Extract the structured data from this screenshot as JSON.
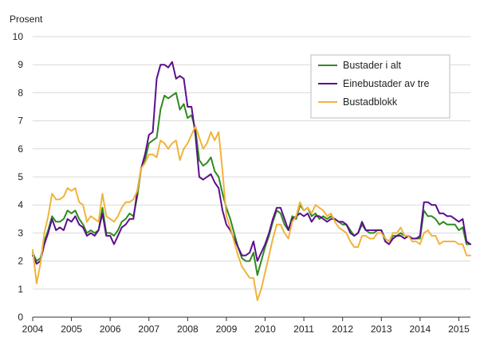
{
  "chart_data": {
    "type": "line",
    "ylabel": "Prosent",
    "ylim": [
      0,
      10
    ],
    "yticks": [
      0,
      1,
      2,
      3,
      4,
      5,
      6,
      7,
      8,
      9,
      10
    ],
    "xlim": [
      2004.0,
      2015.3
    ],
    "xticks": [
      2004,
      2005,
      2006,
      2007,
      2008,
      2009,
      2010,
      2011,
      2012,
      2013,
      2014,
      2015
    ],
    "xtick_labels": [
      "2004",
      "2005",
      "2006",
      "2007",
      "2008",
      "2009",
      "2010",
      "2011",
      "2012",
      "2013",
      "2014",
      "2015"
    ],
    "grid": "horizontal",
    "legend": "top-right",
    "series": [
      {
        "name": "Bustader i alt",
        "color": "#2e8b1e",
        "x": [
          2004.0,
          2004.1,
          2004.2,
          2004.3,
          2004.4,
          2004.5,
          2004.6,
          2004.7,
          2004.8,
          2004.9,
          2005.0,
          2005.1,
          2005.2,
          2005.3,
          2005.4,
          2005.5,
          2005.6,
          2005.7,
          2005.8,
          2005.9,
          2006.0,
          2006.1,
          2006.2,
          2006.3,
          2006.4,
          2006.5,
          2006.6,
          2006.7,
          2006.8,
          2006.9,
          2007.0,
          2007.1,
          2007.2,
          2007.3,
          2007.4,
          2007.5,
          2007.6,
          2007.7,
          2007.8,
          2007.9,
          2008.0,
          2008.1,
          2008.2,
          2008.3,
          2008.4,
          2008.5,
          2008.6,
          2008.7,
          2008.8,
          2008.9,
          2009.0,
          2009.1,
          2009.2,
          2009.3,
          2009.4,
          2009.5,
          2009.6,
          2009.7,
          2009.8,
          2009.9,
          2010.0,
          2010.1,
          2010.2,
          2010.3,
          2010.4,
          2010.5,
          2010.6,
          2010.7,
          2010.8,
          2010.9,
          2011.0,
          2011.1,
          2011.2,
          2011.3,
          2011.4,
          2011.5,
          2011.6,
          2011.7,
          2011.8,
          2011.9,
          2012.0,
          2012.1,
          2012.2,
          2012.3,
          2012.4,
          2012.5,
          2012.6,
          2012.7,
          2012.8,
          2012.9,
          2013.0,
          2013.1,
          2013.2,
          2013.3,
          2013.4,
          2013.5,
          2013.6,
          2013.7,
          2013.8,
          2013.9,
          2014.0,
          2014.1,
          2014.2,
          2014.3,
          2014.4,
          2014.5,
          2014.6,
          2014.7,
          2014.8,
          2014.9,
          2015.0,
          2015.1,
          2015.2,
          2015.3
        ],
        "values": [
          2.3,
          2.0,
          2.1,
          2.7,
          3.1,
          3.6,
          3.4,
          3.4,
          3.5,
          3.8,
          3.7,
          3.8,
          3.5,
          3.3,
          3.0,
          3.1,
          3.0,
          3.1,
          3.9,
          3.0,
          3.0,
          2.9,
          3.1,
          3.4,
          3.5,
          3.7,
          3.6,
          4.3,
          5.3,
          5.6,
          6.2,
          6.3,
          6.4,
          7.4,
          7.9,
          7.8,
          7.9,
          8.0,
          7.4,
          7.6,
          7.1,
          7.2,
          6.7,
          5.6,
          5.4,
          5.5,
          5.7,
          5.2,
          5.0,
          4.4,
          3.9,
          3.5,
          3.0,
          2.5,
          2.1,
          2.0,
          2.0,
          2.3,
          1.5,
          2.0,
          2.5,
          2.9,
          3.4,
          3.8,
          3.7,
          3.3,
          3.1,
          3.6,
          3.5,
          4.0,
          3.8,
          3.9,
          3.6,
          3.7,
          3.5,
          3.6,
          3.5,
          3.6,
          3.5,
          3.4,
          3.3,
          3.3,
          3.1,
          2.9,
          3.0,
          3.3,
          3.1,
          3.0,
          3.0,
          3.1,
          3.1,
          2.8,
          2.7,
          2.9,
          2.9,
          3.0,
          2.9,
          2.9,
          2.8,
          2.8,
          2.8,
          3.8,
          3.6,
          3.6,
          3.5,
          3.3,
          3.4,
          3.3,
          3.3,
          3.3,
          3.1,
          3.2,
          2.6,
          2.6
        ]
      },
      {
        "name": "Einebustader av tre",
        "color": "#5b0f8c",
        "x": [
          2004.0,
          2004.1,
          2004.2,
          2004.3,
          2004.4,
          2004.5,
          2004.6,
          2004.7,
          2004.8,
          2004.9,
          2005.0,
          2005.1,
          2005.2,
          2005.3,
          2005.4,
          2005.5,
          2005.6,
          2005.7,
          2005.8,
          2005.9,
          2006.0,
          2006.1,
          2006.2,
          2006.3,
          2006.4,
          2006.5,
          2006.6,
          2006.7,
          2006.8,
          2006.9,
          2007.0,
          2007.1,
          2007.2,
          2007.3,
          2007.4,
          2007.5,
          2007.6,
          2007.7,
          2007.8,
          2007.9,
          2008.0,
          2008.1,
          2008.2,
          2008.3,
          2008.4,
          2008.5,
          2008.6,
          2008.7,
          2008.8,
          2008.9,
          2009.0,
          2009.1,
          2009.2,
          2009.3,
          2009.4,
          2009.5,
          2009.6,
          2009.7,
          2009.8,
          2009.9,
          2010.0,
          2010.1,
          2010.2,
          2010.3,
          2010.4,
          2010.5,
          2010.6,
          2010.7,
          2010.8,
          2010.9,
          2011.0,
          2011.1,
          2011.2,
          2011.3,
          2011.4,
          2011.5,
          2011.6,
          2011.7,
          2011.8,
          2011.9,
          2012.0,
          2012.1,
          2012.2,
          2012.3,
          2012.4,
          2012.5,
          2012.6,
          2012.7,
          2012.8,
          2012.9,
          2013.0,
          2013.1,
          2013.2,
          2013.3,
          2013.4,
          2013.5,
          2013.6,
          2013.7,
          2013.8,
          2013.9,
          2014.0,
          2014.1,
          2014.2,
          2014.3,
          2014.4,
          2014.5,
          2014.6,
          2014.7,
          2014.8,
          2014.9,
          2015.0,
          2015.1,
          2015.2,
          2015.3
        ],
        "values": [
          2.2,
          1.9,
          2.0,
          2.6,
          3.0,
          3.5,
          3.1,
          3.2,
          3.1,
          3.5,
          3.4,
          3.6,
          3.3,
          3.2,
          2.9,
          3.0,
          2.9,
          3.1,
          3.7,
          2.9,
          2.9,
          2.6,
          2.9,
          3.2,
          3.3,
          3.5,
          3.5,
          4.5,
          5.3,
          5.8,
          6.5,
          6.6,
          8.5,
          9.0,
          9.0,
          8.9,
          9.1,
          8.5,
          8.6,
          8.5,
          7.5,
          7.5,
          6.5,
          5.0,
          4.9,
          5.0,
          5.1,
          4.8,
          4.6,
          3.8,
          3.3,
          3.1,
          2.8,
          2.5,
          2.2,
          2.2,
          2.3,
          2.7,
          2.0,
          2.3,
          2.6,
          3.0,
          3.5,
          3.9,
          3.9,
          3.5,
          3.1,
          3.5,
          3.6,
          3.7,
          3.6,
          3.7,
          3.4,
          3.6,
          3.6,
          3.5,
          3.4,
          3.5,
          3.5,
          3.4,
          3.4,
          3.3,
          3.0,
          2.9,
          3.0,
          3.4,
          3.1,
          3.1,
          3.1,
          3.1,
          3.1,
          2.7,
          2.6,
          2.8,
          2.9,
          2.9,
          2.8,
          2.9,
          2.8,
          2.8,
          2.9,
          4.1,
          4.1,
          4.0,
          4.0,
          3.7,
          3.7,
          3.6,
          3.6,
          3.5,
          3.4,
          3.5,
          2.7,
          2.6
        ]
      },
      {
        "name": "Bustadblokk",
        "color": "#f0b43c",
        "x": [
          2004.0,
          2004.1,
          2004.2,
          2004.3,
          2004.4,
          2004.5,
          2004.6,
          2004.7,
          2004.8,
          2004.9,
          2005.0,
          2005.1,
          2005.2,
          2005.3,
          2005.4,
          2005.5,
          2005.6,
          2005.7,
          2005.8,
          2005.9,
          2006.0,
          2006.1,
          2006.2,
          2006.3,
          2006.4,
          2006.5,
          2006.6,
          2006.7,
          2006.8,
          2006.9,
          2007.0,
          2007.1,
          2007.2,
          2007.3,
          2007.4,
          2007.5,
          2007.6,
          2007.7,
          2007.8,
          2007.9,
          2008.0,
          2008.1,
          2008.2,
          2008.3,
          2008.4,
          2008.5,
          2008.6,
          2008.7,
          2008.8,
          2008.9,
          2009.0,
          2009.1,
          2009.2,
          2009.3,
          2009.4,
          2009.5,
          2009.6,
          2009.7,
          2009.8,
          2009.9,
          2010.0,
          2010.1,
          2010.2,
          2010.3,
          2010.4,
          2010.5,
          2010.6,
          2010.7,
          2010.8,
          2010.9,
          2011.0,
          2011.1,
          2011.2,
          2011.3,
          2011.4,
          2011.5,
          2011.6,
          2011.7,
          2011.8,
          2011.9,
          2012.0,
          2012.1,
          2012.2,
          2012.3,
          2012.4,
          2012.5,
          2012.6,
          2012.7,
          2012.8,
          2012.9,
          2013.0,
          2013.1,
          2013.2,
          2013.3,
          2013.4,
          2013.5,
          2013.6,
          2013.7,
          2013.8,
          2013.9,
          2014.0,
          2014.1,
          2014.2,
          2014.3,
          2014.4,
          2014.5,
          2014.6,
          2014.7,
          2014.8,
          2014.9,
          2015.0,
          2015.1,
          2015.2,
          2015.3
        ],
        "values": [
          2.4,
          1.2,
          1.9,
          3.0,
          3.6,
          4.4,
          4.2,
          4.2,
          4.3,
          4.6,
          4.5,
          4.6,
          4.1,
          4.0,
          3.4,
          3.6,
          3.5,
          3.4,
          4.4,
          3.6,
          3.5,
          3.4,
          3.6,
          3.9,
          4.1,
          4.1,
          4.2,
          4.5,
          5.3,
          5.5,
          5.8,
          5.8,
          5.7,
          6.3,
          6.2,
          6.0,
          6.2,
          6.3,
          5.6,
          6.0,
          6.2,
          6.5,
          6.8,
          6.4,
          6.0,
          6.2,
          6.6,
          6.3,
          6.6,
          5.2,
          3.6,
          3.2,
          2.7,
          2.2,
          1.8,
          1.6,
          1.4,
          1.4,
          0.6,
          1.0,
          1.6,
          2.2,
          2.8,
          3.3,
          3.3,
          3.0,
          2.8,
          3.4,
          3.6,
          4.1,
          3.8,
          3.9,
          3.7,
          4.0,
          3.9,
          3.8,
          3.6,
          3.7,
          3.4,
          3.2,
          3.1,
          3.0,
          2.7,
          2.5,
          2.5,
          2.9,
          2.9,
          2.8,
          2.8,
          3.0,
          3.0,
          2.8,
          2.7,
          3.0,
          3.0,
          3.2,
          2.9,
          2.9,
          2.7,
          2.7,
          2.6,
          3.0,
          3.1,
          2.9,
          2.9,
          2.6,
          2.7,
          2.7,
          2.7,
          2.7,
          2.6,
          2.6,
          2.2,
          2.2
        ]
      }
    ]
  }
}
